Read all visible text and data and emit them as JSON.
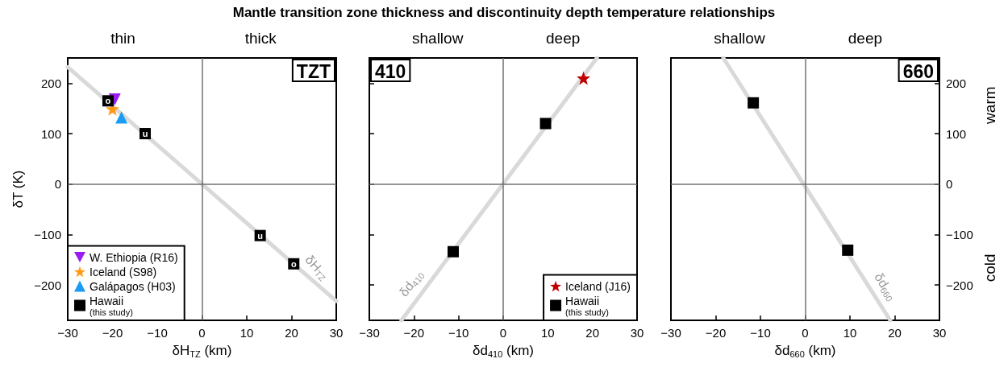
{
  "chart_data": [
    {
      "type": "scatter",
      "title": "Mantle transition zone thickness and discontinuity depth temperature relationships",
      "xlabel": "δH$_{TZ}$ (km)",
      "ylabel": "δT (K)",
      "annotations": [
        "thin",
        "thick",
        "TZT"
      ],
      "xlim": [
        -30,
        30
      ],
      "xticks": [
        {
          "value": -30,
          "label": "−30"
        },
        {
          "value": -20,
          "label": "−20"
        },
        {
          "value": -10,
          "label": "−10"
        },
        0,
        10,
        20,
        30
      ],
      "ylim": [
        -270,
        250
      ],
      "yticks": [
        {
          "value": -200,
          "label": "−200"
        },
        {
          "value": -100,
          "label": "−100"
        },
        0,
        100,
        200
      ],
      "ref_lines": [
        {
          "axis": "x",
          "value": 0,
          "color": "#707070"
        },
        {
          "axis": "y",
          "value": 0,
          "color": "#707070"
        }
      ],
      "legend": "bottom left",
      "grid": false,
      "series": [
        {
          "type": "line",
          "name": "δH$_{TZ}$",
          "color": "#d9d9d9",
          "x": [
            -30,
            30
          ],
          "values": [
            232,
            -232
          ],
          "marker": "none"
        },
        {
          "name": "W. Ethiopia (R16)",
          "color": "#9b1cf2",
          "marker": "triangle_down",
          "x": [
            -19.5
          ],
          "values": [
            168
          ]
        },
        {
          "name": "Iceland (S98)",
          "color": "#ff9a14",
          "marker": "star",
          "x": [
            -20
          ],
          "values": [
            149
          ]
        },
        {
          "name": "Galápagos (H03)",
          "color": "#1a9cf5",
          "marker": "triangle",
          "x": [
            -18
          ],
          "values": [
            132
          ]
        },
        {
          "name": "Hawaii\n(this study)",
          "color": "#000000",
          "marker": "square",
          "x": [
            -21,
            -12.7,
            13,
            20.5
          ],
          "values": [
            165,
            100,
            -102,
            -158
          ],
          "value_labels": [
            "o",
            "u",
            "u",
            "o"
          ]
        }
      ]
    },
    {
      "type": "scatter",
      "xlabel": "δd$_{410}$ (km)",
      "annotations": [
        "shallow",
        "deep",
        "410"
      ],
      "xlim": [
        -30,
        30
      ],
      "xticks": [
        {
          "value": -30,
          "label": "−30"
        },
        {
          "value": -20,
          "label": "−20"
        },
        {
          "value": -10,
          "label": "−10"
        },
        0,
        10,
        20,
        30
      ],
      "ylim": [
        -270,
        250
      ],
      "yticks": [
        {
          "value": -200,
          "label": null
        },
        {
          "value": -100,
          "label": null
        },
        {
          "value": 0,
          "label": null
        },
        {
          "value": 100,
          "label": null
        },
        {
          "value": 200,
          "label": null
        }
      ],
      "tick_labels": "x",
      "ref_lines": [
        {
          "axis": "x",
          "value": 0,
          "color": "#707070"
        },
        {
          "axis": "y",
          "value": 0,
          "color": "#707070"
        }
      ],
      "legend": "bottom right",
      "grid": false,
      "series": [
        {
          "type": "line",
          "name": "δd$_{410}$",
          "color": "#d9d9d9",
          "x": [
            -22.8,
            21
          ],
          "values": [
            -270,
            250
          ],
          "marker": "none"
        },
        {
          "name": "Iceland (J16)",
          "color": "#c00000",
          "marker": "star",
          "x": [
            18
          ],
          "values": [
            210
          ]
        },
        {
          "name": "Hawaii\n(this study)",
          "color": "#000000",
          "marker": "square",
          "x": [
            9.5,
            -11.2
          ],
          "values": [
            120,
            -134
          ]
        }
      ]
    },
    {
      "type": "scatter",
      "xlabel": "δd$_{660}$ (km)",
      "annotations": [
        "shallow",
        "deep",
        "660",
        "warm",
        "cold"
      ],
      "xlim": [
        -30,
        30
      ],
      "xticks": [
        {
          "value": -30,
          "label": "−30"
        },
        {
          "value": -20,
          "label": "−20"
        },
        {
          "value": -10,
          "label": "−10"
        },
        0,
        10,
        20,
        30
      ],
      "y2lim": [
        -270,
        250
      ],
      "y2ticks": [
        {
          "value": -200,
          "label": "−200"
        },
        {
          "value": -100,
          "label": "−100"
        },
        0,
        100,
        200
      ],
      "ref_lines": [
        {
          "axis": "x",
          "value": 0,
          "color": "#707070"
        },
        {
          "axis": "y2",
          "value": 0,
          "color": "#707070"
        }
      ],
      "grid": false,
      "series": [
        {
          "type": "line",
          "name": "δd$_{660}$",
          "color": "#d9d9d9",
          "axis": "y2",
          "x": [
            -18.3,
            19
          ],
          "values": [
            250,
            -270
          ],
          "marker": "none"
        },
        {
          "color": "#000000",
          "marker": "square",
          "axis": "y2",
          "x": [
            -11.6,
            9.5
          ],
          "values": [
            161,
            -131
          ]
        }
      ]
    }
  ]
}
